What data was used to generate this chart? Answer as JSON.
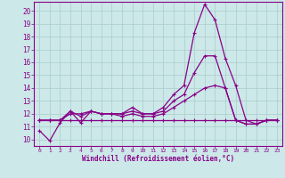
{
  "xlabel": "Windchill (Refroidissement éolien,°C)",
  "bg_color": "#cce8e8",
  "line_color": "#880088",
  "grid_color": "#aacccc",
  "xlim": [
    -0.5,
    23.5
  ],
  "ylim": [
    9.5,
    20.7
  ],
  "yticks": [
    10,
    11,
    12,
    13,
    14,
    15,
    16,
    17,
    18,
    19,
    20
  ],
  "xticks": [
    0,
    1,
    2,
    3,
    4,
    5,
    6,
    7,
    8,
    9,
    10,
    11,
    12,
    13,
    14,
    15,
    16,
    17,
    18,
    19,
    20,
    21,
    22,
    23
  ],
  "series1_x": [
    0,
    1,
    2,
    3,
    4,
    5,
    6,
    7,
    8,
    9,
    10,
    11,
    12,
    13,
    14,
    15,
    16,
    17,
    18,
    19,
    20,
    21,
    22,
    23
  ],
  "series1_y": [
    10.7,
    9.9,
    11.3,
    12.2,
    11.3,
    12.2,
    12.0,
    12.0,
    12.0,
    12.5,
    12.0,
    12.0,
    12.5,
    13.5,
    14.2,
    18.3,
    20.5,
    19.3,
    16.3,
    14.2,
    11.5,
    11.2,
    11.5,
    11.5
  ],
  "series2_x": [
    0,
    1,
    2,
    3,
    4,
    5,
    6,
    7,
    8,
    9,
    10,
    11,
    12,
    13,
    14,
    15,
    16,
    17,
    18,
    19,
    20,
    21,
    22,
    23
  ],
  "series2_y": [
    11.5,
    11.5,
    11.5,
    11.5,
    11.5,
    11.5,
    11.5,
    11.5,
    11.5,
    11.5,
    11.5,
    11.5,
    11.5,
    11.5,
    11.5,
    11.5,
    11.5,
    11.5,
    11.5,
    11.5,
    11.5,
    11.5,
    11.5,
    11.5
  ],
  "series3_x": [
    0,
    1,
    2,
    3,
    4,
    5,
    6,
    7,
    8,
    9,
    10,
    11,
    12,
    13,
    14,
    15,
    16,
    17,
    18,
    19,
    20,
    21,
    22,
    23
  ],
  "series3_y": [
    11.5,
    11.5,
    11.5,
    12.2,
    11.8,
    12.2,
    12.0,
    12.0,
    11.8,
    12.0,
    11.8,
    11.8,
    12.0,
    12.5,
    13.0,
    13.5,
    14.0,
    14.2,
    14.0,
    11.5,
    11.2,
    11.2,
    11.5,
    11.5
  ],
  "series4_x": [
    0,
    1,
    2,
    3,
    4,
    5,
    6,
    7,
    8,
    9,
    10,
    11,
    12,
    13,
    14,
    15,
    16,
    17,
    18,
    19,
    20,
    21,
    22,
    23
  ],
  "series4_y": [
    11.5,
    11.5,
    11.5,
    12.0,
    12.0,
    12.2,
    12.0,
    12.0,
    12.0,
    12.2,
    12.0,
    12.0,
    12.2,
    13.0,
    13.5,
    15.2,
    16.5,
    16.5,
    14.0,
    11.5,
    11.2,
    11.2,
    11.5,
    11.5
  ]
}
